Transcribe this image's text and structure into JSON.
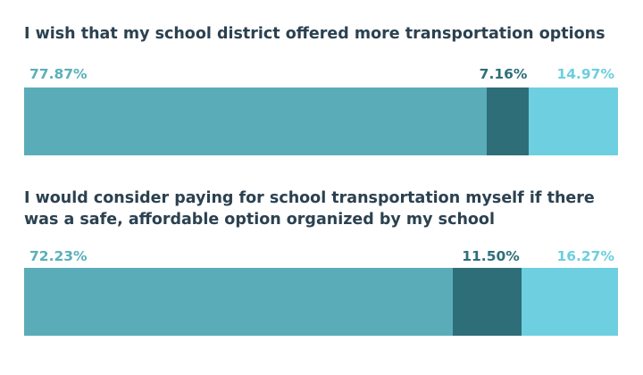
{
  "colors": {
    "title": "#2b4150",
    "label_dark": "#2e6e7a",
    "label_teal": "#5ab0b9",
    "label_light": "#6ccfdf"
  },
  "chart_data": [
    {
      "type": "bar",
      "orientation": "horizontal-stacked",
      "title": "I wish that my school district offered more transportation options",
      "categories": [
        ""
      ],
      "series": [
        {
          "values": [
            77.87
          ],
          "label": "77.87%",
          "color": "#5aadb8",
          "label_color": "#5ab0b9"
        },
        {
          "values": [
            7.16
          ],
          "label": "7.16%",
          "color": "#2e6e79",
          "label_color": "#2e6e7a"
        },
        {
          "values": [
            14.97
          ],
          "label": "14.97%",
          "color": "#6dcfdf",
          "label_color": "#6ccfdf"
        }
      ],
      "xlim": [
        0,
        100
      ]
    },
    {
      "type": "bar",
      "orientation": "horizontal-stacked",
      "title": "I would consider paying for school transportation myself if there was a safe, affordable option organized by my school",
      "categories": [
        ""
      ],
      "series": [
        {
          "values": [
            72.23
          ],
          "label": "72.23%",
          "color": "#5aadb8",
          "label_color": "#5ab0b9"
        },
        {
          "values": [
            11.5
          ],
          "label": "11.50%",
          "color": "#2e6e79",
          "label_color": "#2e6e7a"
        },
        {
          "values": [
            16.27
          ],
          "label": "16.27%",
          "color": "#6dcfdf",
          "label_color": "#6ccfdf"
        }
      ],
      "xlim": [
        0,
        100
      ]
    }
  ]
}
